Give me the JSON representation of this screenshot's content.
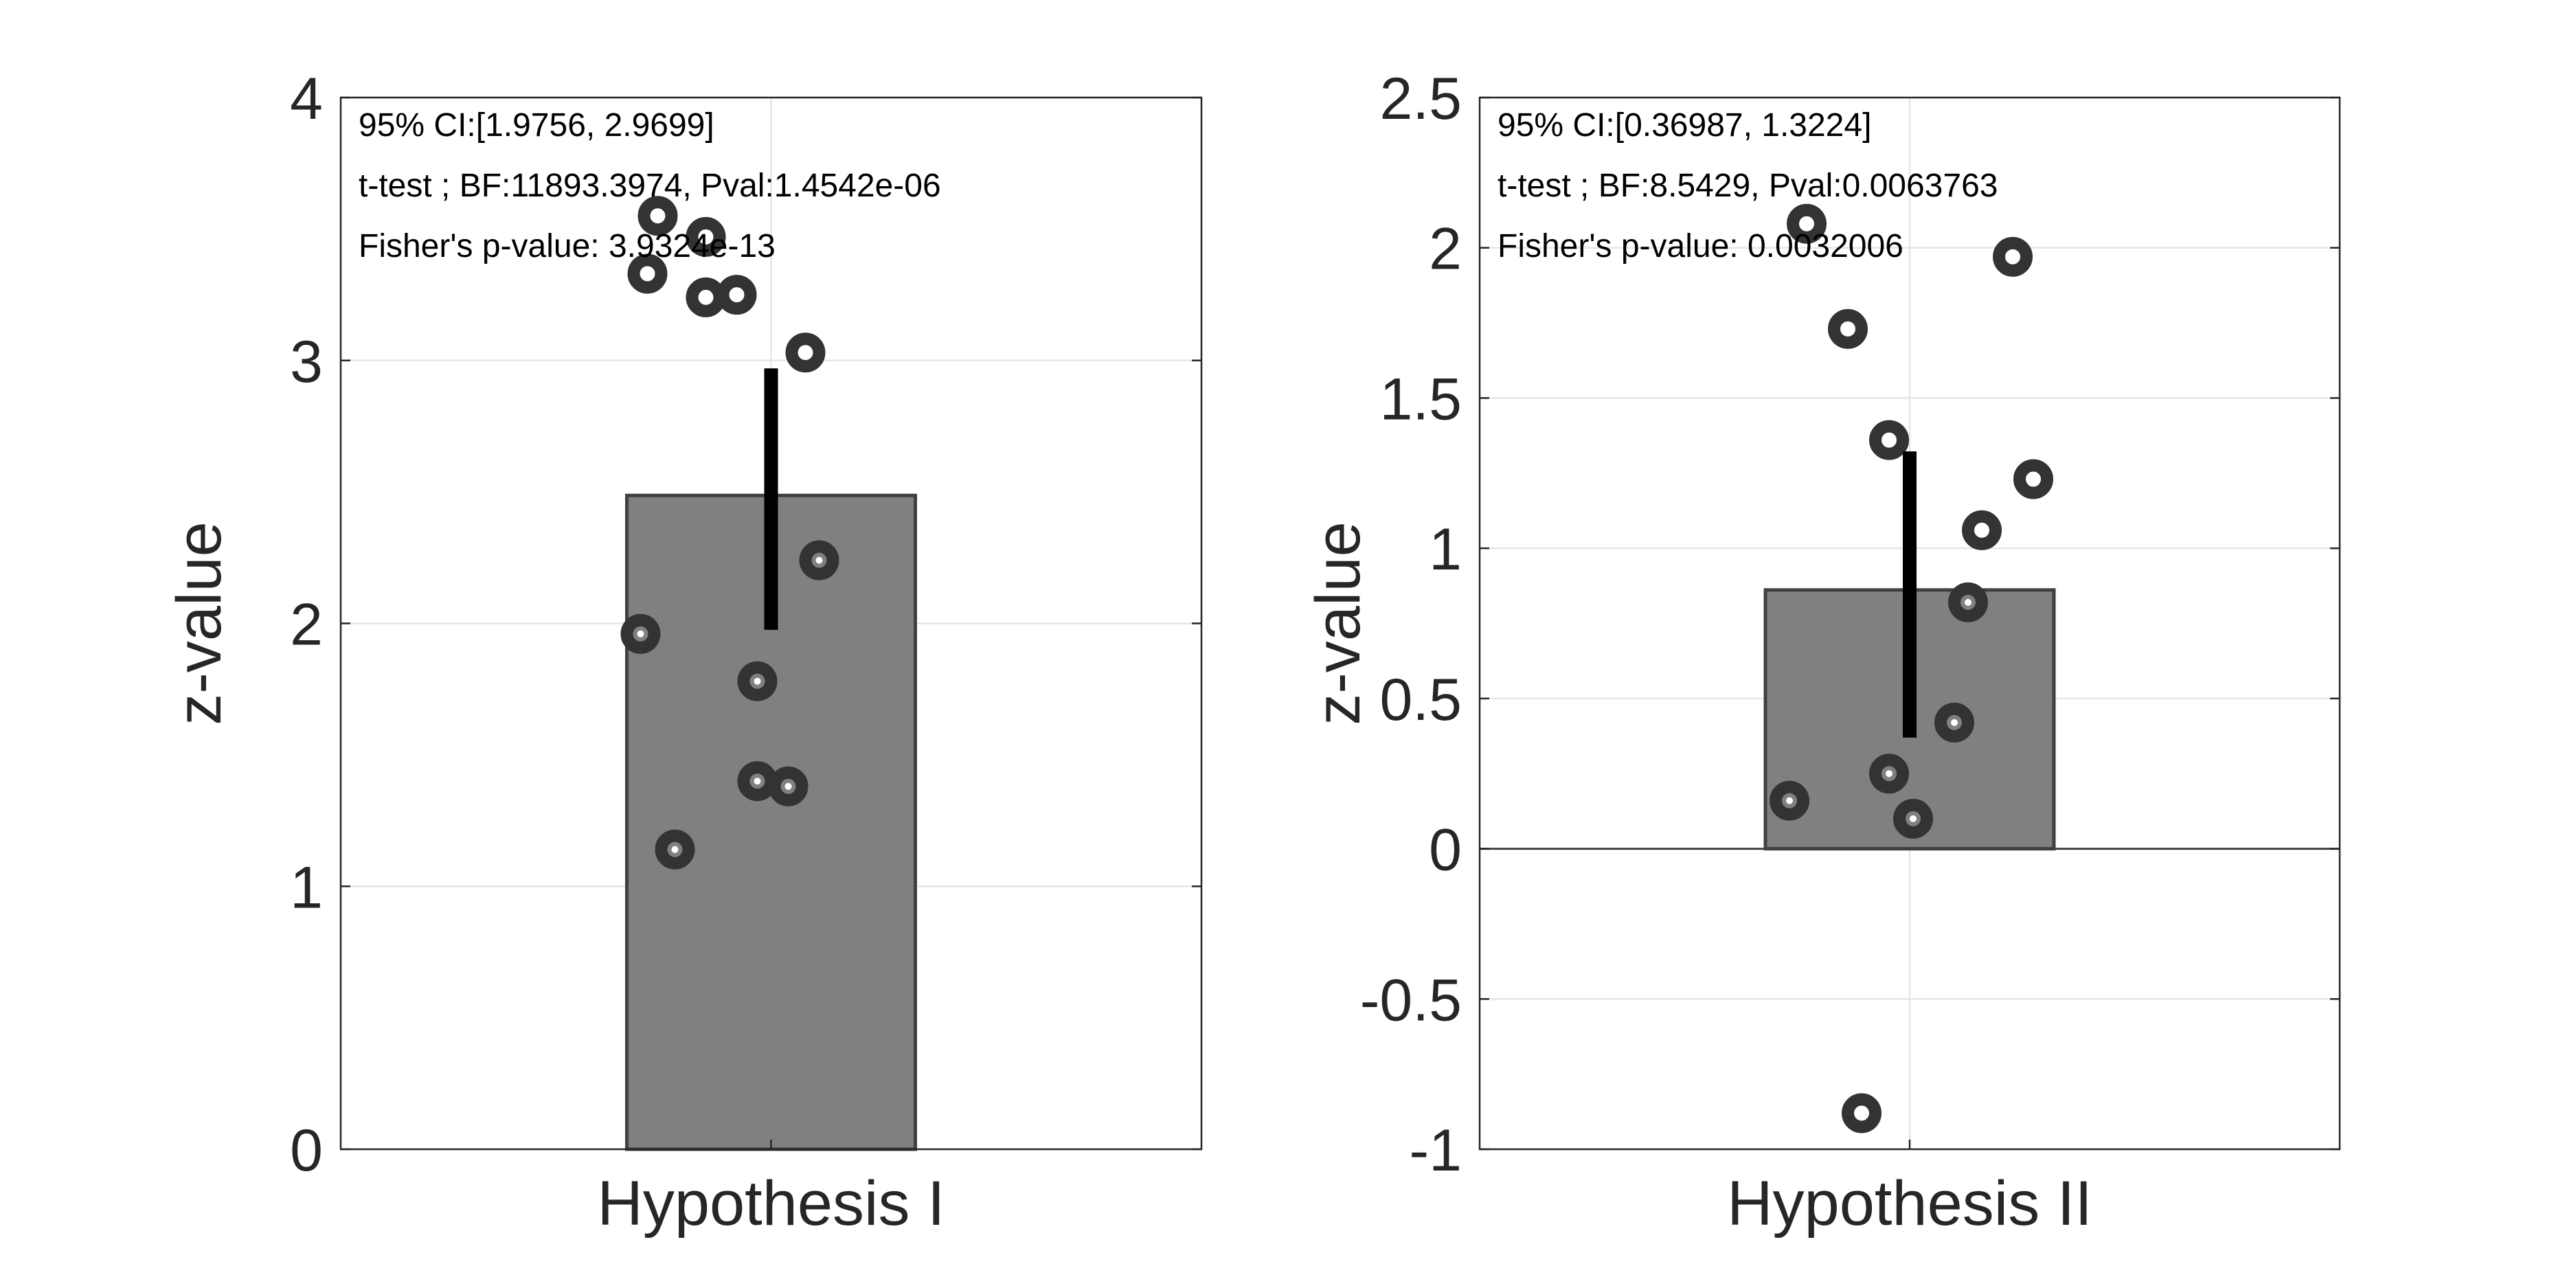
{
  "chart_data": [
    {
      "type": "bar",
      "categories": [
        "Hypothesis I"
      ],
      "values": [
        2.4866
      ],
      "error_bar": [
        1.9756,
        2.9699
      ],
      "ylabel": "z-value",
      "ylim": [
        0,
        4
      ],
      "yticks": [
        "0",
        "1",
        "2",
        "3",
        "4"
      ],
      "grid": true,
      "points": [
        {
          "x": -0.33,
          "y": 3.55
        },
        {
          "x": -0.19,
          "y": 3.47
        },
        {
          "x": -0.36,
          "y": 3.33
        },
        {
          "x": -0.19,
          "y": 3.24
        },
        {
          "x": -0.1,
          "y": 3.25
        },
        {
          "x": 0.1,
          "y": 3.03
        },
        {
          "x": 0.14,
          "y": 2.24
        },
        {
          "x": -0.38,
          "y": 1.96
        },
        {
          "x": -0.04,
          "y": 1.78
        },
        {
          "x": -0.04,
          "y": 1.4
        },
        {
          "x": 0.05,
          "y": 1.38
        },
        {
          "x": -0.28,
          "y": 1.14
        }
      ],
      "annotations": [
        "95% CI:[1.9756, 2.9699]",
        "t-test ; BF:11893.3974, Pval:1.4542e-06",
        "Fisher's p-value: 3.9324e-13"
      ]
    },
    {
      "type": "bar",
      "categories": [
        "Hypothesis II"
      ],
      "values": [
        0.8613
      ],
      "error_bar": [
        0.36987,
        1.3224
      ],
      "ylabel": "z-value",
      "ylim": [
        -1,
        2.5
      ],
      "yticks": [
        "-1",
        "-0.5",
        "0",
        "0.5",
        "1",
        "1.5",
        "2",
        "2.5"
      ],
      "grid": true,
      "points": [
        {
          "x": -0.3,
          "y": 2.08
        },
        {
          "x": 0.3,
          "y": 1.97
        },
        {
          "x": -0.18,
          "y": 1.73
        },
        {
          "x": -0.06,
          "y": 1.36
        },
        {
          "x": 0.36,
          "y": 1.23
        },
        {
          "x": 0.21,
          "y": 1.06
        },
        {
          "x": 0.17,
          "y": 0.82
        },
        {
          "x": 0.13,
          "y": 0.42
        },
        {
          "x": -0.06,
          "y": 0.25
        },
        {
          "x": -0.35,
          "y": 0.16
        },
        {
          "x": 0.01,
          "y": 0.1
        },
        {
          "x": -0.14,
          "y": -0.88
        }
      ],
      "annotations": [
        "95% CI:[0.36987, 1.3224]",
        "t-test ; BF:8.5429, Pval:0.0063763",
        "Fisher's p-value: 0.0032006"
      ]
    }
  ],
  "colors": {
    "bar_fill": "#808080",
    "bar_edge": "#404040",
    "error_bar": "#000000",
    "point_ring": "#333333",
    "point_center": "#ffffff",
    "axis": "#262626",
    "grid": "#e6e6e6"
  }
}
